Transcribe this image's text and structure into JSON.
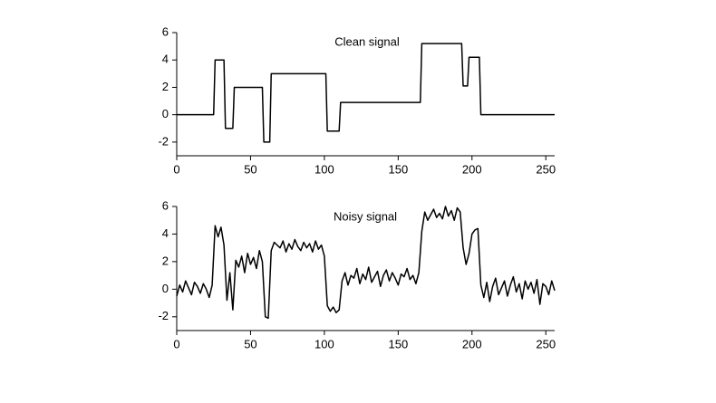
{
  "chart_data": [
    {
      "type": "line",
      "title": "Clean signal",
      "x": [
        0,
        25,
        26,
        32,
        33,
        38,
        39,
        58,
        59,
        63,
        64,
        101,
        102,
        110,
        111,
        165,
        166,
        193,
        194,
        197,
        198,
        205,
        206,
        256
      ],
      "series": [
        {
          "name": "Clean signal",
          "color": "#000000",
          "values": [
            0,
            0,
            4,
            4,
            -1,
            -1,
            2,
            2,
            -2,
            -2,
            3,
            3,
            -1.2,
            -1.2,
            0.9,
            0.9,
            5.2,
            5.2,
            2.1,
            2.1,
            4.2,
            4.2,
            0,
            0
          ]
        }
      ],
      "xlim": [
        0,
        256
      ],
      "xticks": [
        0,
        50,
        100,
        150,
        200,
        250
      ],
      "ylim": [
        -3,
        6
      ],
      "yticks": [
        -2,
        0,
        2,
        4,
        6
      ]
    },
    {
      "type": "line",
      "title": "Noisy signal",
      "x": [
        0,
        2,
        4,
        6,
        8,
        10,
        12,
        14,
        16,
        18,
        20,
        22,
        24,
        26,
        28,
        30,
        32,
        34,
        36,
        38,
        40,
        42,
        44,
        46,
        48,
        50,
        52,
        54,
        56,
        58,
        60,
        62,
        64,
        66,
        68,
        70,
        72,
        74,
        76,
        78,
        80,
        82,
        84,
        86,
        88,
        90,
        92,
        94,
        96,
        98,
        100,
        102,
        104,
        106,
        108,
        110,
        112,
        114,
        116,
        118,
        120,
        122,
        124,
        126,
        128,
        130,
        132,
        134,
        136,
        138,
        140,
        142,
        144,
        146,
        148,
        150,
        152,
        154,
        156,
        158,
        160,
        162,
        164,
        166,
        168,
        170,
        172,
        174,
        176,
        178,
        180,
        182,
        184,
        186,
        188,
        190,
        192,
        194,
        196,
        198,
        200,
        202,
        204,
        206,
        208,
        210,
        212,
        214,
        216,
        218,
        220,
        222,
        224,
        226,
        228,
        230,
        232,
        234,
        236,
        238,
        240,
        242,
        244,
        246,
        248,
        250,
        252,
        254,
        256
      ],
      "series": [
        {
          "name": "Noisy signal",
          "color": "#000000",
          "values": [
            -0.5,
            0.3,
            -0.2,
            0.6,
            0.1,
            -0.4,
            0.5,
            0.2,
            -0.3,
            0.4,
            0,
            -0.6,
            0.3,
            4.6,
            3.8,
            4.5,
            3.2,
            -0.8,
            1.2,
            -1.5,
            2.1,
            1.6,
            2.4,
            1.2,
            2.6,
            1.8,
            2.3,
            1.5,
            2.8,
            2.0,
            -2.0,
            -2.1,
            2.8,
            3.4,
            3.2,
            3.0,
            3.5,
            2.7,
            3.3,
            2.9,
            3.6,
            3.1,
            2.8,
            3.4,
            3.0,
            3.3,
            2.7,
            3.5,
            2.9,
            3.2,
            2.4,
            -1.2,
            -1.6,
            -1.3,
            -1.7,
            -1.5,
            0.6,
            1.2,
            0.3,
            1.0,
            0.8,
            1.5,
            0.4,
            1.1,
            0.7,
            1.6,
            0.5,
            0.9,
            1.3,
            0.2,
            1.0,
            1.4,
            0.6,
            1.2,
            0.8,
            0.3,
            1.1,
            0.9,
            1.5,
            0.7,
            1.0,
            0.4,
            1.2,
            4.2,
            5.6,
            5.0,
            5.4,
            5.8,
            5.2,
            5.5,
            5.1,
            6.0,
            5.3,
            5.7,
            5.0,
            5.9,
            5.6,
            3.0,
            1.8,
            2.6,
            4.0,
            4.3,
            4.4,
            0.3,
            -0.6,
            0.5,
            -0.9,
            0.2,
            0.8,
            -0.4,
            0.1,
            0.6,
            -0.5,
            0.3,
            0.9,
            -0.2,
            0.4,
            -0.7,
            0.6,
            0.0,
            0.5,
            -0.3,
            0.7,
            -1.1,
            0.4,
            0.2,
            -0.4,
            0.6,
            -0.1
          ]
        }
      ],
      "xlim": [
        0,
        256
      ],
      "xticks": [
        0,
        50,
        100,
        150,
        200,
        250
      ],
      "ylim": [
        -3,
        6
      ],
      "yticks": [
        -2,
        0,
        2,
        4,
        6
      ]
    }
  ]
}
